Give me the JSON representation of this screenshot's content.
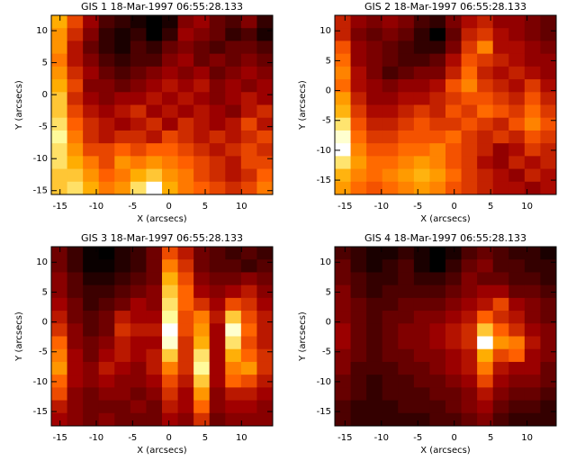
{
  "chart_data": [
    {
      "type": "heatmap",
      "title": "GIS 1 18-Mar-1997 06:55:28.133",
      "xlabel": "X (arcsecs)",
      "ylabel": "Y (arcsecs)",
      "colormap": "red-temperature",
      "xlim": [
        -16.2,
        14.3
      ],
      "ylim": [
        -15.6,
        12.4
      ],
      "xticks": [
        -15,
        -10,
        -5,
        0,
        5,
        10
      ],
      "yticks": [
        -15,
        -10,
        -5,
        0,
        5,
        10
      ],
      "z": [
        [
          75,
          55,
          40,
          25,
          20,
          15,
          10,
          15,
          35,
          40,
          30,
          25,
          35,
          20
        ],
        [
          70,
          50,
          35,
          20,
          15,
          20,
          10,
          20,
          40,
          35,
          30,
          20,
          25,
          15
        ],
        [
          70,
          45,
          30,
          20,
          15,
          25,
          20,
          30,
          35,
          30,
          25,
          30,
          30,
          25
        ],
        [
          65,
          45,
          35,
          25,
          20,
          25,
          25,
          35,
          40,
          30,
          35,
          30,
          35,
          30
        ],
        [
          70,
          50,
          40,
          30,
          25,
          30,
          35,
          40,
          35,
          40,
          30,
          35,
          40,
          35
        ],
        [
          75,
          55,
          35,
          35,
          30,
          35,
          40,
          45,
          40,
          45,
          35,
          40,
          35,
          40
        ],
        [
          80,
          50,
          40,
          35,
          40,
          40,
          45,
          40,
          45,
          40,
          35,
          40,
          45,
          40
        ],
        [
          80,
          55,
          45,
          40,
          45,
          50,
          40,
          45,
          40,
          45,
          40,
          35,
          45,
          50
        ],
        [
          85,
          60,
          50,
          45,
          40,
          45,
          50,
          40,
          50,
          45,
          40,
          45,
          55,
          45
        ],
        [
          90,
          65,
          50,
          45,
          50,
          50,
          45,
          55,
          50,
          45,
          50,
          45,
          50,
          55
        ],
        [
          85,
          70,
          55,
          55,
          60,
          55,
          60,
          60,
          55,
          50,
          45,
          50,
          55,
          50
        ],
        [
          85,
          75,
          65,
          55,
          70,
          65,
          70,
          65,
          60,
          55,
          50,
          45,
          55,
          55
        ],
        [
          80,
          80,
          70,
          60,
          65,
          75,
          80,
          70,
          65,
          55,
          50,
          45,
          50,
          60
        ],
        [
          80,
          85,
          75,
          65,
          70,
          85,
          100,
          75,
          65,
          60,
          55,
          50,
          55,
          65
        ]
      ]
    },
    {
      "type": "heatmap",
      "title": "GIS 2 18-Mar-1997 06:55:28.133",
      "xlabel": "X (arcsecs)",
      "ylabel": "Y (arcsecs)",
      "colormap": "red-temperature",
      "xlim": [
        -16.4,
        14
      ],
      "ylim": [
        -17.4,
        12.6
      ],
      "xticks": [
        -15,
        -10,
        -5,
        0,
        5,
        10
      ],
      "yticks": [
        -15,
        -10,
        -5,
        0,
        5,
        10
      ],
      "z": [
        [
          45,
          35,
          30,
          35,
          30,
          20,
          15,
          30,
          40,
          45,
          35,
          35,
          30,
          25
        ],
        [
          45,
          30,
          25,
          30,
          25,
          15,
          5,
          25,
          45,
          50,
          40,
          35,
          30,
          25
        ],
        [
          55,
          35,
          30,
          25,
          20,
          15,
          15,
          30,
          50,
          65,
          40,
          40,
          35,
          30
        ],
        [
          60,
          35,
          30,
          25,
          20,
          20,
          25,
          40,
          55,
          50,
          45,
          40,
          35,
          35
        ],
        [
          65,
          40,
          30,
          20,
          25,
          30,
          30,
          45,
          60,
          45,
          40,
          45,
          40,
          35
        ],
        [
          60,
          40,
          35,
          30,
          35,
          35,
          40,
          55,
          65,
          50,
          45,
          40,
          50,
          40
        ],
        [
          70,
          45,
          35,
          35,
          40,
          40,
          45,
          50,
          55,
          55,
          50,
          45,
          55,
          45
        ],
        [
          75,
          50,
          40,
          40,
          45,
          50,
          45,
          55,
          50,
          60,
          55,
          50,
          60,
          50
        ],
        [
          85,
          55,
          45,
          45,
          50,
          55,
          50,
          50,
          55,
          50,
          45,
          55,
          65,
          55
        ],
        [
          95,
          60,
          50,
          50,
          55,
          55,
          55,
          60,
          50,
          45,
          50,
          45,
          55,
          50
        ],
        [
          100,
          65,
          55,
          55,
          60,
          60,
          65,
          55,
          50,
          45,
          35,
          40,
          50,
          45
        ],
        [
          85,
          70,
          60,
          60,
          65,
          70,
          65,
          55,
          50,
          40,
          35,
          45,
          40,
          45
        ],
        [
          75,
          65,
          60,
          65,
          70,
          75,
          70,
          60,
          50,
          45,
          40,
          35,
          45,
          40
        ],
        [
          70,
          60,
          55,
          60,
          65,
          70,
          65,
          55,
          50,
          45,
          40,
          40,
          35,
          40
        ]
      ]
    },
    {
      "type": "heatmap",
      "title": "GIS 3 18-Mar-1997 06:55:28.133",
      "xlabel": "X (arcsecs)",
      "ylabel": "Y (arcsecs)",
      "colormap": "red-temperature",
      "xlim": [
        -16.2,
        14.3
      ],
      "ylim": [
        -17.4,
        12.6
      ],
      "xticks": [
        -15,
        -10,
        -5,
        0,
        5,
        10
      ],
      "yticks": [
        -15,
        -10,
        -5,
        0,
        5,
        10
      ],
      "z": [
        [
          30,
          20,
          10,
          8,
          15,
          20,
          30,
          55,
          45,
          30,
          25,
          20,
          25,
          20
        ],
        [
          30,
          20,
          10,
          10,
          15,
          20,
          30,
          65,
          50,
          30,
          25,
          25,
          20,
          25
        ],
        [
          35,
          25,
          15,
          15,
          20,
          25,
          30,
          75,
          55,
          35,
          30,
          30,
          35,
          30
        ],
        [
          35,
          25,
          20,
          20,
          25,
          30,
          35,
          80,
          60,
          40,
          35,
          40,
          45,
          35
        ],
        [
          40,
          30,
          20,
          25,
          30,
          40,
          35,
          85,
          60,
          50,
          40,
          55,
          50,
          40
        ],
        [
          45,
          30,
          25,
          30,
          45,
          40,
          40,
          90,
          55,
          65,
          45,
          80,
          55,
          45
        ],
        [
          50,
          35,
          25,
          30,
          50,
          45,
          45,
          100,
          55,
          70,
          40,
          95,
          60,
          45
        ],
        [
          60,
          35,
          30,
          35,
          45,
          40,
          40,
          95,
          50,
          75,
          40,
          85,
          55,
          45
        ],
        [
          65,
          40,
          30,
          40,
          45,
          40,
          45,
          80,
          50,
          85,
          40,
          75,
          60,
          50
        ],
        [
          70,
          40,
          35,
          45,
          40,
          35,
          45,
          65,
          50,
          90,
          40,
          65,
          70,
          50
        ],
        [
          60,
          40,
          35,
          40,
          35,
          35,
          40,
          55,
          45,
          80,
          40,
          60,
          55,
          45
        ],
        [
          55,
          35,
          30,
          35,
          35,
          30,
          35,
          50,
          40,
          70,
          35,
          45,
          45,
          40
        ],
        [
          45,
          35,
          30,
          30,
          30,
          35,
          30,
          45,
          40,
          60,
          35,
          40,
          40,
          35
        ],
        [
          40,
          35,
          30,
          35,
          30,
          30,
          30,
          40,
          35,
          50,
          30,
          35,
          35,
          35
        ]
      ]
    },
    {
      "type": "heatmap",
      "title": "GIS 4 18-Mar-1997 06:55:28.133",
      "xlabel": "X (arcsecs)",
      "ylabel": "Y (arcsecs)",
      "colormap": "red-temperature",
      "xlim": [
        -16.4,
        14
      ],
      "ylim": [
        -17.4,
        12.6
      ],
      "xticks": [
        -15,
        -10,
        -5,
        0,
        5,
        10
      ],
      "yticks": [
        -15,
        -10,
        -5,
        0,
        5,
        10
      ],
      "z": [
        [
          25,
          20,
          15,
          15,
          20,
          15,
          10,
          15,
          25,
          30,
          25,
          20,
          20,
          15
        ],
        [
          30,
          20,
          15,
          20,
          25,
          15,
          10,
          20,
          30,
          35,
          25,
          25,
          20,
          20
        ],
        [
          30,
          25,
          20,
          20,
          25,
          20,
          20,
          25,
          35,
          30,
          30,
          25,
          25,
          20
        ],
        [
          35,
          25,
          20,
          25,
          25,
          25,
          25,
          30,
          35,
          40,
          40,
          30,
          30,
          25
        ],
        [
          35,
          30,
          25,
          25,
          30,
          30,
          30,
          35,
          40,
          45,
          55,
          40,
          35,
          30
        ],
        [
          35,
          30,
          25,
          30,
          30,
          35,
          35,
          40,
          45,
          60,
          50,
          45,
          35,
          30
        ],
        [
          40,
          30,
          25,
          30,
          35,
          35,
          40,
          45,
          50,
          80,
          60,
          50,
          40,
          35
        ],
        [
          40,
          30,
          25,
          30,
          35,
          35,
          40,
          45,
          50,
          100,
          70,
          65,
          45,
          35
        ],
        [
          35,
          30,
          25,
          30,
          30,
          35,
          35,
          40,
          45,
          75,
          55,
          60,
          40,
          35
        ],
        [
          35,
          25,
          25,
          25,
          30,
          30,
          35,
          40,
          45,
          65,
          45,
          40,
          40,
          30
        ],
        [
          30,
          25,
          20,
          25,
          25,
          30,
          30,
          35,
          40,
          55,
          40,
          35,
          35,
          30
        ],
        [
          30,
          25,
          20,
          25,
          25,
          25,
          30,
          30,
          35,
          45,
          35,
          30,
          30,
          25
        ],
        [
          25,
          20,
          20,
          20,
          25,
          25,
          25,
          30,
          35,
          40,
          30,
          25,
          25,
          20
        ],
        [
          25,
          20,
          20,
          20,
          20,
          20,
          25,
          25,
          30,
          35,
          25,
          20,
          20,
          20
        ]
      ]
    }
  ]
}
